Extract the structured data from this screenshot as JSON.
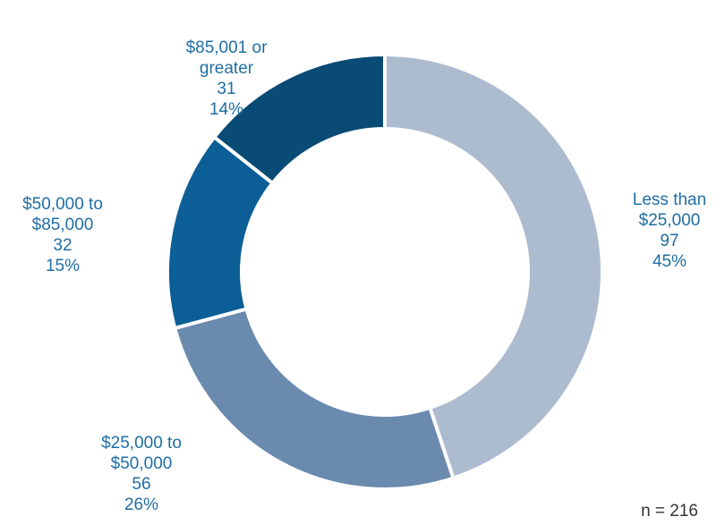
{
  "chart_data": {
    "type": "donut",
    "categories": [
      "Less than $25,000",
      "$25,000 to $50,000",
      "$50,000 to $85,000",
      "$85,001 or greater"
    ],
    "values": [
      97,
      56,
      32,
      31
    ],
    "percent_labels": [
      "45%",
      "26%",
      "15%",
      "14%"
    ],
    "colors": [
      "#adbbcf",
      "#6a8aae",
      "#0b5e96",
      "#0a4b76"
    ],
    "note": "n = 216"
  }
}
